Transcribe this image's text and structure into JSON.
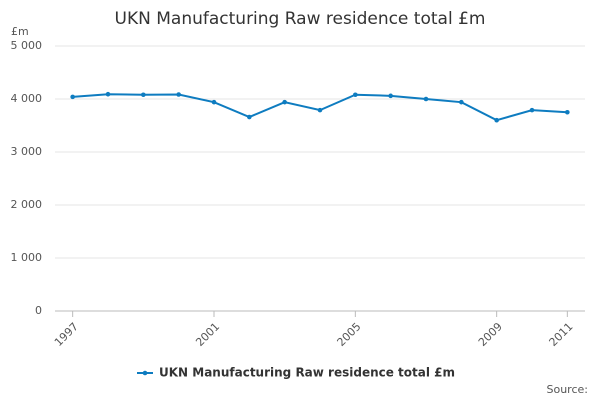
{
  "chart_data": {
    "type": "line",
    "title": "UKN Manufacturing Raw residence total £m",
    "y_label": "£m",
    "source": "Source:",
    "x": [
      1997,
      1998,
      1999,
      2000,
      2001,
      2002,
      2003,
      2004,
      2005,
      2006,
      2007,
      2008,
      2009,
      2010,
      2011
    ],
    "series": [
      {
        "name": "UKN Manufacturing Raw residence total £m",
        "color": "#0e7cc0",
        "values": [
          4040,
          4090,
          4080,
          4085,
          3940,
          3660,
          3940,
          3790,
          4080,
          4060,
          4000,
          3940,
          3600,
          3790,
          3750
        ]
      }
    ],
    "xlim": [
      1996.5,
      2011.5
    ],
    "xticks": [
      1997,
      2001,
      2005,
      2009,
      2011
    ],
    "ylim": [
      0,
      5000
    ],
    "yticks": [
      0,
      {
        "value": 1000,
        "label": "1 000"
      },
      {
        "value": 2000,
        "label": "2 000"
      },
      {
        "value": 3000,
        "label": "3 000"
      },
      {
        "value": 4000,
        "label": "4 000"
      },
      {
        "value": 5000,
        "label": "5 000"
      }
    ],
    "grid": true
  }
}
